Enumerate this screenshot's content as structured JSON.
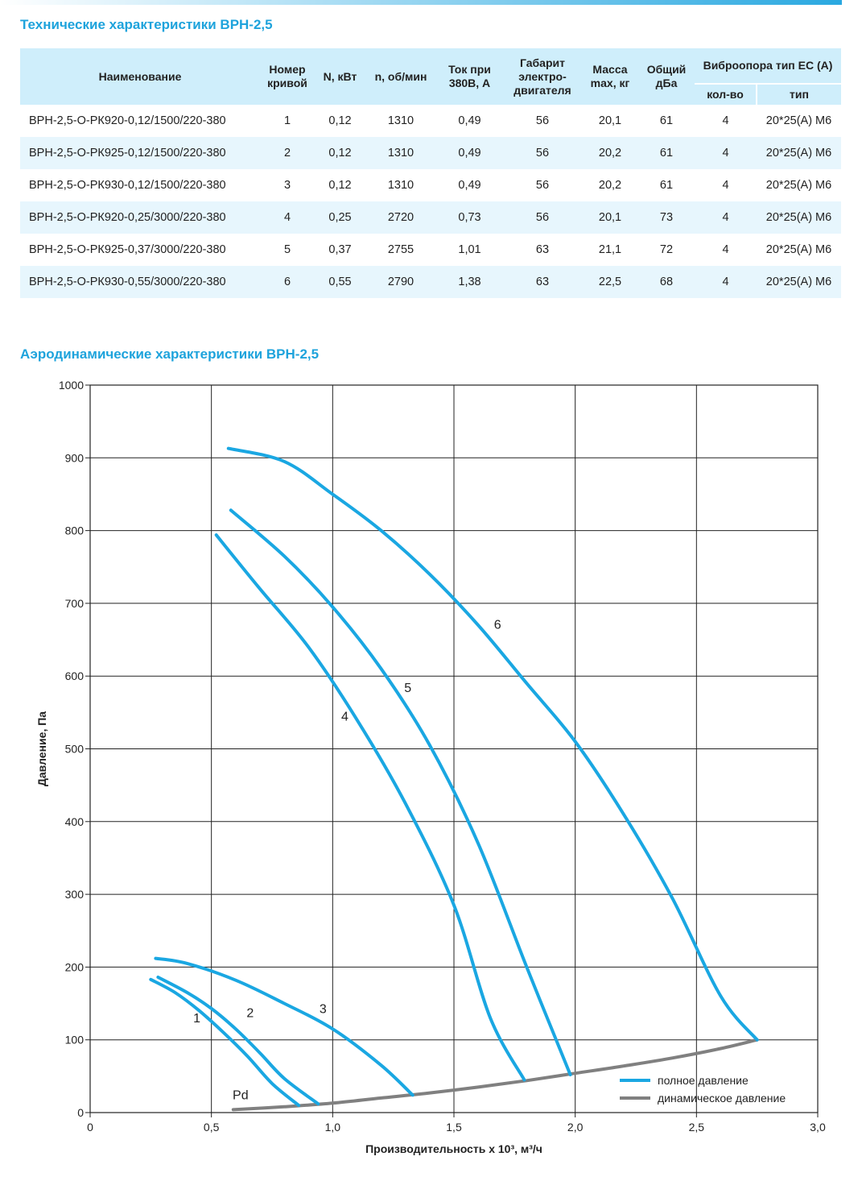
{
  "page": {
    "spec_title": "Технические характеристики ВРН-2,5",
    "aero_title": "Аэродинамические характеристики ВРН-2,5"
  },
  "table": {
    "headers": {
      "name": "Наименование",
      "curve_no": "Номер кривой",
      "power": "N, кВт",
      "rpm": "n, об/мин",
      "current": "Ток при 380В, А",
      "motor_size": "Габарит электро-двигателя",
      "mass": "Масса max, кг",
      "noise": "Общий дБа",
      "vibro": "Виброопора тип ЕС (А)",
      "vibro_count": "кол-во",
      "vibro_type": "тип"
    },
    "rows": [
      [
        "ВРН-2,5-О-РК920-0,12/1500/220-380",
        "1",
        "0,12",
        "1310",
        "0,49",
        "56",
        "20,1",
        "61",
        "4",
        "20*25(А) М6"
      ],
      [
        "ВРН-2,5-О-РК925-0,12/1500/220-380",
        "2",
        "0,12",
        "1310",
        "0,49",
        "56",
        "20,2",
        "61",
        "4",
        "20*25(А) М6"
      ],
      [
        "ВРН-2,5-О-РК930-0,12/1500/220-380",
        "3",
        "0,12",
        "1310",
        "0,49",
        "56",
        "20,2",
        "61",
        "4",
        "20*25(А) М6"
      ],
      [
        "ВРН-2,5-О-РК920-0,25/3000/220-380",
        "4",
        "0,25",
        "2720",
        "0,73",
        "56",
        "20,1",
        "73",
        "4",
        "20*25(А) М6"
      ],
      [
        "ВРН-2,5-О-РК925-0,37/3000/220-380",
        "5",
        "0,37",
        "2755",
        "1,01",
        "63",
        "21,1",
        "72",
        "4",
        "20*25(А) М6"
      ],
      [
        "ВРН-2,5-О-РК930-0,55/3000/220-380",
        "6",
        "0,55",
        "2790",
        "1,38",
        "63",
        "22,5",
        "68",
        "4",
        "20*25(А) М6"
      ]
    ]
  },
  "colors": {
    "accent": "#1ea3dc",
    "full_pressure": "#1aa7e2",
    "dynamic_pressure": "#808080",
    "header_bg": "#cfeefb",
    "stripe_bg": "#e7f6fd"
  },
  "chart_data": {
    "type": "line",
    "title": "Аэродинамические характеристики ВРН-2,5",
    "xlabel": "Производительность х 10³, м³/ч",
    "ylabel": "Давление, Па",
    "xlim": [
      0,
      3.0
    ],
    "ylim": [
      0,
      1000
    ],
    "xticks": [
      0,
      0.5,
      1.0,
      1.5,
      2.0,
      2.5,
      3.0
    ],
    "xtick_labels": [
      "0",
      "0,5",
      "1,0",
      "1,5",
      "2,0",
      "2,5",
      "3,0"
    ],
    "yticks": [
      0,
      100,
      200,
      300,
      400,
      500,
      600,
      700,
      800,
      900,
      1000
    ],
    "ytick_labels": [
      "0",
      "100",
      "200",
      "300",
      "400",
      "500",
      "600",
      "700",
      "800",
      "900",
      "1000"
    ],
    "grid": true,
    "legend": {
      "position": "bottom-right",
      "entries": [
        {
          "label": "полное давление",
          "color": "#1aa7e2"
        },
        {
          "label": "динамическое давление",
          "color": "#808080"
        }
      ]
    },
    "series": [
      {
        "name": "1",
        "kind": "full",
        "label_at": [
          0.44,
          124
        ],
        "points": [
          [
            0.25,
            183
          ],
          [
            0.35,
            165
          ],
          [
            0.45,
            140
          ],
          [
            0.55,
            110
          ],
          [
            0.65,
            77
          ],
          [
            0.75,
            40
          ],
          [
            0.86,
            10
          ]
        ]
      },
      {
        "name": "2",
        "kind": "full",
        "label_at": [
          0.66,
          131
        ],
        "points": [
          [
            0.28,
            186
          ],
          [
            0.4,
            165
          ],
          [
            0.5,
            143
          ],
          [
            0.6,
            115
          ],
          [
            0.7,
            82
          ],
          [
            0.8,
            47
          ],
          [
            0.94,
            12
          ]
        ]
      },
      {
        "name": "3",
        "kind": "full",
        "label_at": [
          0.96,
          137
        ],
        "points": [
          [
            0.27,
            212
          ],
          [
            0.4,
            205
          ],
          [
            0.6,
            182
          ],
          [
            0.8,
            150
          ],
          [
            1.0,
            115
          ],
          [
            1.2,
            65
          ],
          [
            1.33,
            24
          ]
        ]
      },
      {
        "name": "4",
        "kind": "full",
        "label_at": [
          1.05,
          539
        ],
        "points": [
          [
            0.52,
            794
          ],
          [
            0.7,
            720
          ],
          [
            0.9,
            640
          ],
          [
            1.1,
            540
          ],
          [
            1.3,
            425
          ],
          [
            1.5,
            285
          ],
          [
            1.65,
            130
          ],
          [
            1.79,
            45
          ]
        ]
      },
      {
        "name": "5",
        "kind": "full",
        "label_at": [
          1.31,
          578
        ],
        "points": [
          [
            0.58,
            828
          ],
          [
            0.8,
            765
          ],
          [
            1.0,
            695
          ],
          [
            1.2,
            610
          ],
          [
            1.4,
            505
          ],
          [
            1.6,
            370
          ],
          [
            1.8,
            200
          ],
          [
            1.98,
            52
          ]
        ]
      },
      {
        "name": "6",
        "kind": "full",
        "label_at": [
          1.68,
          665
        ],
        "points": [
          [
            0.57,
            913
          ],
          [
            0.8,
            895
          ],
          [
            1.0,
            850
          ],
          [
            1.2,
            800
          ],
          [
            1.4,
            740
          ],
          [
            1.6,
            670
          ],
          [
            1.8,
            590
          ],
          [
            2.0,
            510
          ],
          [
            2.2,
            410
          ],
          [
            2.4,
            295
          ],
          [
            2.6,
            160
          ],
          [
            2.75,
            100
          ]
        ]
      },
      {
        "name": "Pd",
        "kind": "dynamic",
        "label_at": [
          0.62,
          18
        ],
        "points": [
          [
            0.59,
            4
          ],
          [
            0.8,
            8
          ],
          [
            1.0,
            13
          ],
          [
            1.2,
            20
          ],
          [
            1.4,
            27
          ],
          [
            1.6,
            35
          ],
          [
            1.8,
            44
          ],
          [
            2.0,
            54
          ],
          [
            2.2,
            64
          ],
          [
            2.4,
            75
          ],
          [
            2.6,
            88
          ],
          [
            2.75,
            100
          ]
        ]
      }
    ]
  }
}
